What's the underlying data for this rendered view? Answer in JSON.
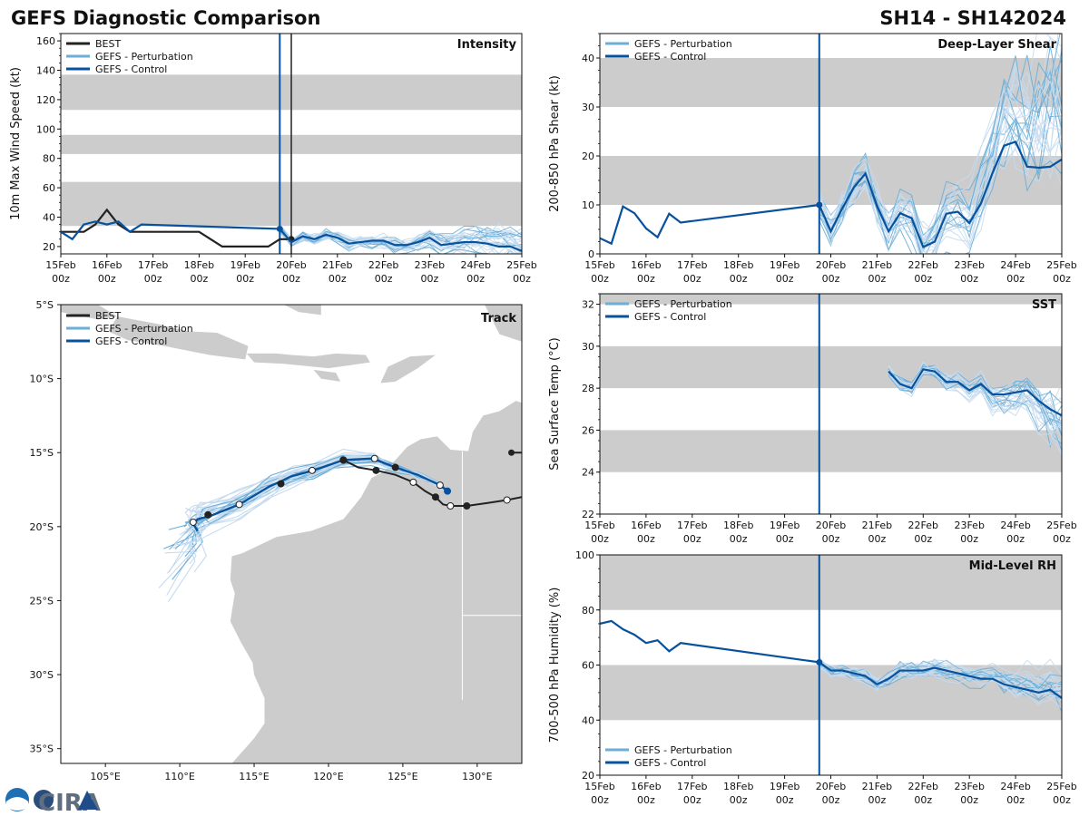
{
  "header": {
    "title": "GEFS Diagnostic Comparison",
    "storm_id": "SH14 - SH142024"
  },
  "colors": {
    "best": "#222222",
    "perturbation": "#6baed6",
    "perturbation_light": "#c6dbef",
    "control": "#08519c",
    "band": "#cccccc",
    "land": "#cccccc"
  },
  "time_axis": {
    "labels": [
      "15Feb\n00z",
      "16Feb\n00z",
      "17Feb\n00z",
      "18Feb\n00z",
      "19Feb\n00z",
      "20Feb\n00z",
      "21Feb\n00z",
      "22Feb\n00z",
      "23Feb\n00z",
      "24Feb\n00z",
      "25Feb\n00z"
    ],
    "range_days": [
      0,
      10
    ],
    "init_day": 4.75
  },
  "legend": {
    "best": "BEST",
    "perturbation": "GEFS - Perturbation",
    "control": "GEFS - Control"
  },
  "chart_data": [
    {
      "id": "intensity",
      "type": "line",
      "title": "Intensity",
      "ylabel": "10m Max Wind Speed (kt)",
      "ylim": [
        15,
        165
      ],
      "yticks": [
        20,
        40,
        60,
        80,
        100,
        120,
        140,
        160
      ],
      "bands": [
        [
          34,
          64
        ],
        [
          83,
          96
        ],
        [
          113,
          137
        ]
      ],
      "best_vline_day": 5.0,
      "series": [
        {
          "name": "BEST",
          "x": [
            0,
            0.25,
            0.5,
            0.75,
            1.0,
            1.25,
            1.5,
            1.75,
            2.0,
            2.25,
            2.5,
            2.75,
            3.0,
            3.25,
            3.5,
            3.75,
            4.0,
            4.25,
            4.5,
            4.75,
            5.0
          ],
          "values": [
            30,
            30,
            30,
            35,
            45,
            35,
            30,
            30,
            30,
            30,
            30,
            30,
            30,
            25,
            20,
            20,
            20,
            20,
            20,
            25,
            25
          ]
        },
        {
          "name": "GEFS - Control",
          "x": [
            0,
            0.25,
            0.5,
            0.75,
            1.0,
            1.25,
            1.5,
            1.75,
            4.75,
            5.0,
            5.25,
            5.5,
            5.75,
            6.0,
            6.25,
            6.5,
            6.75,
            7.0,
            7.25,
            7.5,
            7.75,
            8.0,
            8.25,
            8.5,
            8.75,
            9.0,
            9.25,
            9.5,
            9.75,
            10.0
          ],
          "values": [
            30,
            25,
            35,
            37,
            35,
            37,
            30,
            35,
            32,
            23,
            27,
            25,
            28,
            26,
            22,
            23,
            24,
            24,
            21,
            21,
            23,
            26,
            21,
            22,
            23,
            23,
            22,
            20,
            20,
            17
          ]
        }
      ]
    },
    {
      "id": "shear",
      "type": "line",
      "title": "Deep-Layer Shear",
      "ylabel": "200-850 hPa Shear (kt)",
      "ylim": [
        0,
        45
      ],
      "yticks": [
        0,
        10,
        20,
        30,
        40
      ],
      "bands": [
        [
          10,
          20
        ],
        [
          30,
          40
        ]
      ],
      "series": [
        {
          "name": "GEFS - Control",
          "x": [
            0,
            0.25,
            0.5,
            0.75,
            1.0,
            1.25,
            1.5,
            1.75,
            4.75,
            5.0,
            5.25,
            5.5,
            5.75,
            6.0,
            6.25,
            6.5,
            6.75,
            7.0,
            7.25,
            7.5,
            7.75,
            8.0,
            8.25,
            8.5,
            8.75,
            9.0,
            9.25,
            9.5,
            9.75,
            10.0
          ],
          "values": [
            3.2,
            2.1,
            9.7,
            8.3,
            5.2,
            3.4,
            8.2,
            6.4,
            10.0,
            4.6,
            9.3,
            13.6,
            16.4,
            9.8,
            4.6,
            8.3,
            7.3,
            1.4,
            2.5,
            8.2,
            8.6,
            6.3,
            10.3,
            16.5,
            22.1,
            22.9,
            17.8,
            17.6,
            17.8,
            19.3
          ]
        }
      ]
    },
    {
      "id": "sst",
      "type": "line",
      "title": "SST",
      "ylabel": "Sea Surface Temp (°C)",
      "ylim": [
        22,
        32.5
      ],
      "yticks": [
        22,
        24,
        26,
        28,
        30,
        32
      ],
      "bands": [
        [
          24,
          26
        ],
        [
          28,
          30
        ],
        [
          32,
          32.5
        ]
      ],
      "series": [
        {
          "name": "GEFS - Control",
          "x": [
            6.25,
            6.5,
            6.75,
            7.0,
            7.25,
            7.5,
            7.75,
            8.0,
            8.25,
            8.5,
            8.75,
            9.0,
            9.25,
            9.5,
            9.75,
            10.0
          ],
          "values": [
            28.8,
            28.2,
            28.0,
            28.9,
            28.8,
            28.3,
            28.3,
            27.9,
            28.2,
            27.7,
            27.7,
            27.8,
            27.9,
            27.4,
            27.0,
            26.7
          ]
        }
      ]
    },
    {
      "id": "rh",
      "type": "line",
      "title": "Mid-Level RH",
      "ylabel": "700-500 hPa Humidity (%)",
      "ylim": [
        20,
        100
      ],
      "yticks": [
        20,
        40,
        60,
        80,
        100
      ],
      "bands": [
        [
          40,
          60
        ],
        [
          80,
          100
        ]
      ],
      "series": [
        {
          "name": "GEFS - Control",
          "x": [
            0,
            0.25,
            0.5,
            0.75,
            1.0,
            1.25,
            1.5,
            1.75,
            4.75,
            5.0,
            5.25,
            5.5,
            5.75,
            6.0,
            6.25,
            6.5,
            6.75,
            7.0,
            7.25,
            7.5,
            7.75,
            8.0,
            8.25,
            8.5,
            8.75,
            9.0,
            9.25,
            9.5,
            9.75,
            10.0
          ],
          "values": [
            75,
            76,
            73,
            71,
            68,
            69,
            65,
            68,
            61,
            58,
            58,
            57,
            56,
            53,
            55,
            58,
            58,
            58,
            59,
            58,
            57,
            56,
            55,
            55,
            53,
            52,
            51,
            50,
            51,
            48
          ]
        }
      ]
    },
    {
      "id": "track",
      "type": "line",
      "title": "Track",
      "xlim": [
        102,
        133
      ],
      "ylim": [
        -36,
        -5
      ],
      "xticks": [
        "105°E",
        "110°E",
        "115°E",
        "120°E",
        "125°E",
        "130°E"
      ],
      "xtick_values": [
        105,
        110,
        115,
        120,
        125,
        130
      ],
      "yticks": [
        "5°S",
        "10°S",
        "15°S",
        "20°S",
        "25°S",
        "30°S",
        "35°S"
      ],
      "ytick_values": [
        -5,
        -10,
        -15,
        -20,
        -25,
        -30,
        -35
      ],
      "series": [
        {
          "name": "BEST",
          "lon": [
            133.0,
            132.0,
            130.7,
            129.3,
            128.6,
            128.2,
            127.7,
            127.2,
            126.5,
            125.7,
            124.5,
            123.2,
            122.0,
            121.0
          ],
          "lat": [
            -18.0,
            -18.2,
            -18.4,
            -18.6,
            -18.6,
            -18.6,
            -18.5,
            -18.0,
            -17.6,
            -17.0,
            -16.5,
            -16.2,
            -16.0,
            -15.5
          ]
        },
        {
          "name": "BEST (early)",
          "lon": [
            132.3,
            133.0
          ],
          "lat": [
            -15.0,
            -15.0
          ]
        },
        {
          "name": "GEFS - Control",
          "lon": [
            128.0,
            127.5,
            126.0,
            124.5,
            123.0,
            121.0,
            119.0,
            117.5,
            116.0,
            114.0,
            112.0,
            111.2,
            110.9,
            111.2
          ],
          "lat": [
            -17.6,
            -17.2,
            -16.5,
            -16.0,
            -15.4,
            -15.5,
            -16.2,
            -16.6,
            -17.3,
            -18.5,
            -19.3,
            -19.5,
            -19.8,
            -20.3
          ]
        }
      ]
    }
  ]
}
